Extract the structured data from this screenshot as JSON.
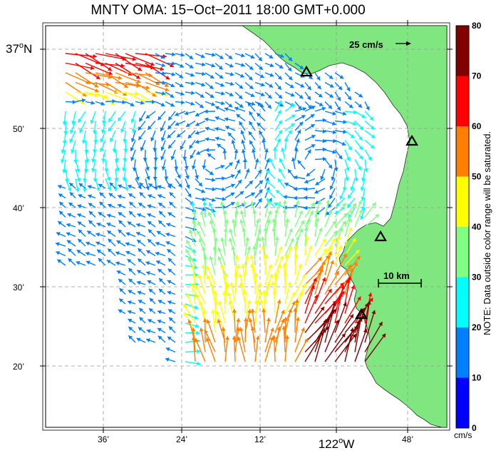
{
  "title": "MNTY OMA: 15−Oct−2011 18:00 GMT+0.000",
  "scale_vector_label": "25 cm/s",
  "scale_bar_label": "10 km",
  "note": "NOTE: Data outside color range will be saturated.",
  "units_label": "cm/s",
  "lat_labels": [
    {
      "text": "37",
      "suffix": "N",
      "big": true
    },
    {
      "text": "50’",
      "suffix": "",
      "big": false
    },
    {
      "text": "40’",
      "suffix": "",
      "big": false
    },
    {
      "text": "30’",
      "suffix": "",
      "big": false
    },
    {
      "text": "20’",
      "suffix": "",
      "big": false
    }
  ],
  "lon_labels": [
    {
      "text": "36’",
      "big": false
    },
    {
      "text": "24’",
      "big": false
    },
    {
      "text": "12’",
      "big": false
    },
    {
      "text": "122",
      "suffix": "W",
      "big": true
    },
    {
      "text": "48’",
      "big": false
    }
  ],
  "colorbar": {
    "ticks": [
      "0",
      "10",
      "20",
      "30",
      "40",
      "50",
      "60",
      "70",
      "80"
    ],
    "colors": [
      "#0000ff",
      "#0080ff",
      "#00ffff",
      "#80ff80",
      "#ffff00",
      "#ff8000",
      "#ff0000",
      "#800000"
    ]
  },
  "colors": {
    "land": "#80e680",
    "grid": "#999999"
  },
  "stations": 4
}
